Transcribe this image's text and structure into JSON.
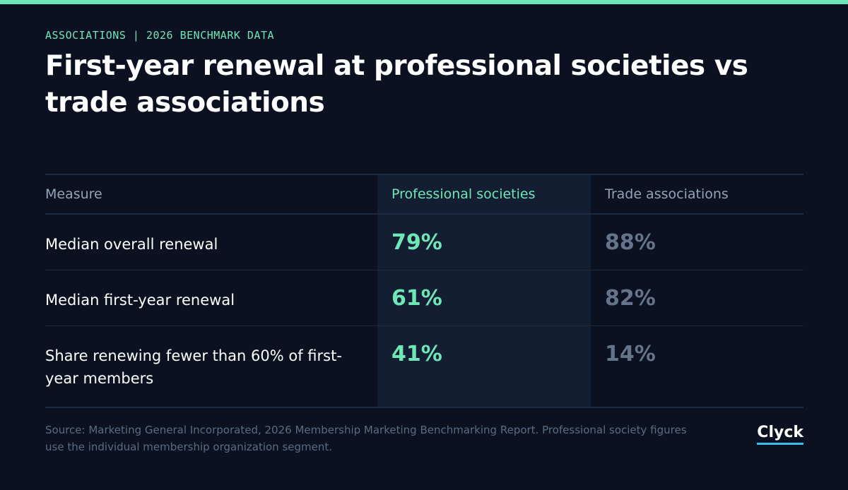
{
  "header": {
    "eyebrow": "ASSOCIATIONS | 2026 BENCHMARK DATA",
    "title": "First-year renewal at professional societies vs trade associations"
  },
  "table": {
    "headers": [
      "Measure",
      "Professional societies",
      "Trade associations"
    ],
    "rows": [
      [
        "Median overall renewal",
        "79%",
        "88%"
      ],
      [
        "Median first-year renewal",
        "61%",
        "82%"
      ],
      [
        "Share renewing fewer than 60% of first-year members",
        "41%",
        "14%"
      ]
    ]
  },
  "footer": {
    "source": "Source: Marketing General Incorporated, 2026 Membership Marketing Benchmarking Report. Professional society figures use the individual membership organization segment.",
    "brand": "Clyck"
  }
}
